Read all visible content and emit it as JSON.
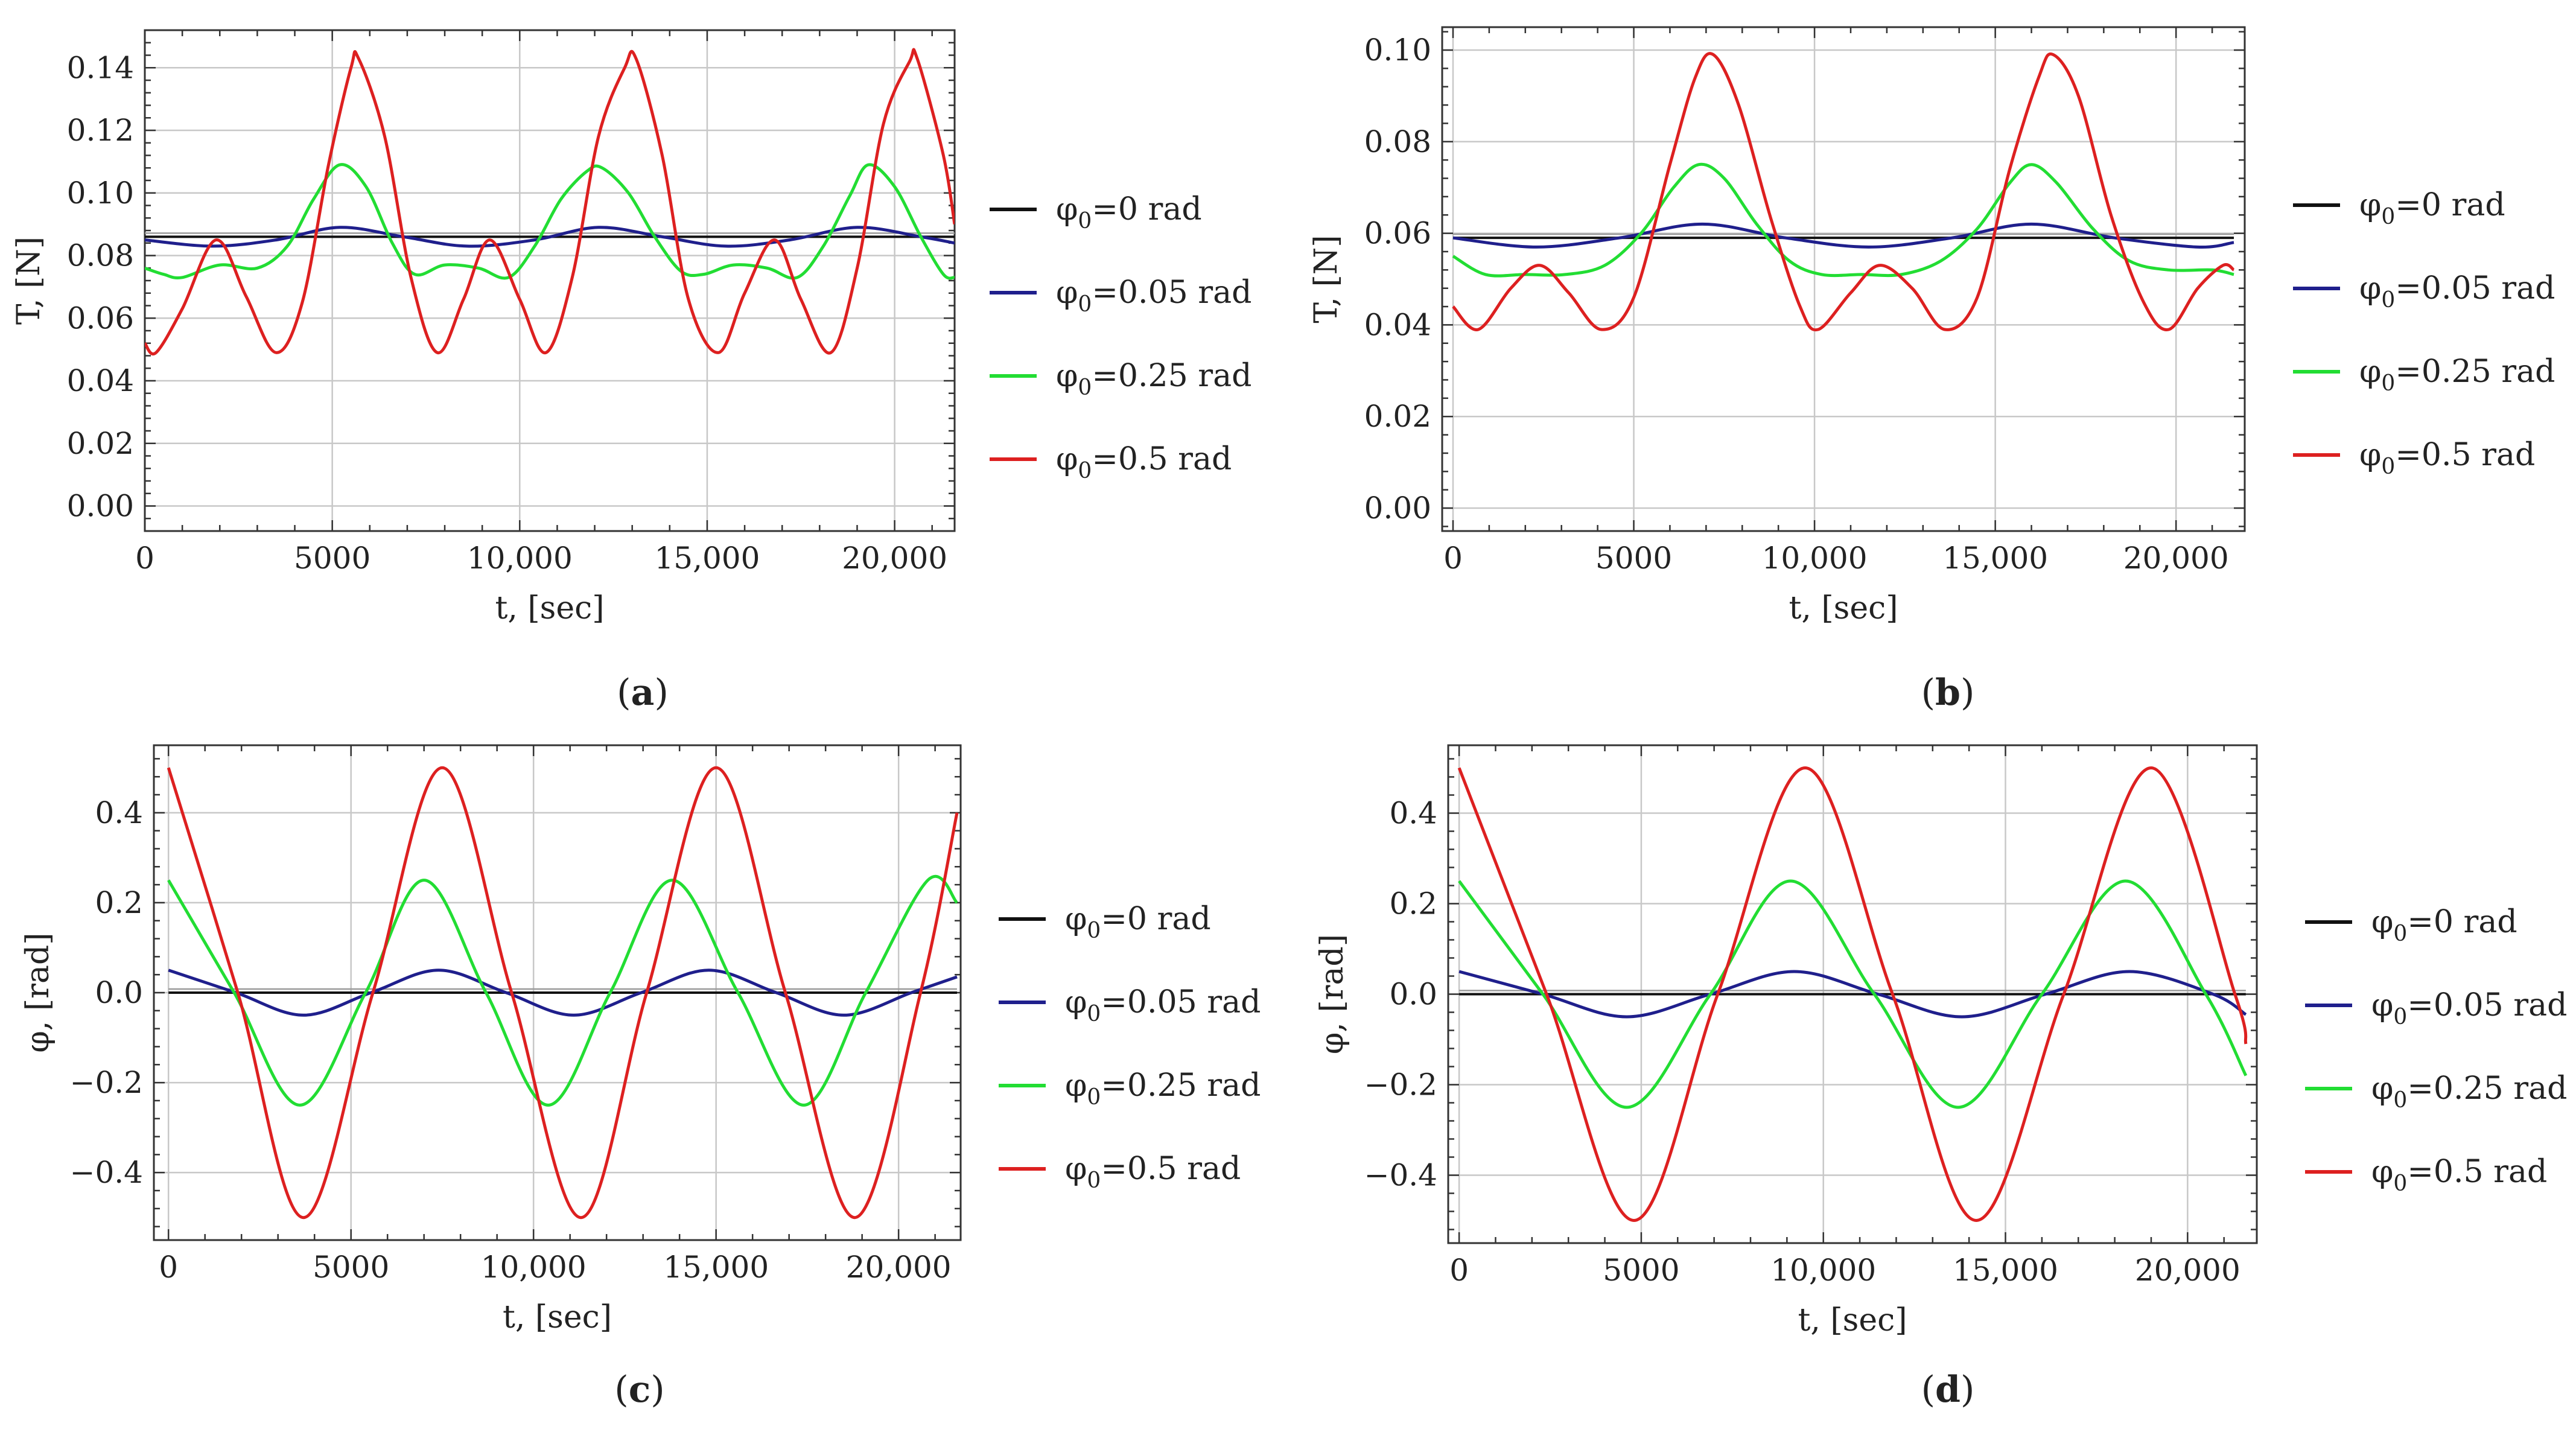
{
  "figure": {
    "colors": {
      "phi0_0": "#111111",
      "phi0_005": "#1f1f8c",
      "phi0_025": "#22dd33",
      "phi0_05": "#dd2020",
      "grid": "#c8c8c8",
      "frame": "#333333"
    }
  },
  "chart_data": [
    {
      "panel": "a",
      "type": "line",
      "panel_label": "(a)",
      "xlabel": "t, [sec]",
      "ylabel": "T, [N]",
      "xlim": [
        0,
        21600
      ],
      "ylim": [
        -0.008,
        0.152
      ],
      "xticks": [
        0,
        5000,
        10000,
        15000,
        20000
      ],
      "xtick_labels": [
        "0",
        "5000",
        "10,000",
        "15,000",
        "20,000"
      ],
      "yticks": [
        0,
        0.02,
        0.04,
        0.06,
        0.08,
        0.1,
        0.12,
        0.14
      ],
      "ytick_labels": [
        "0.00",
        "0.02",
        "0.04",
        "0.06",
        "0.08",
        "0.10",
        "0.12",
        "0.14"
      ],
      "grid": true,
      "legend_placement": "right",
      "series": [
        {
          "name": "φ0=0 rad",
          "phi0": "0",
          "color": "#111111",
          "x": [
            0,
            21600
          ],
          "y": [
            0.086,
            0.086
          ]
        },
        {
          "name": "φ0=0.05 rad",
          "phi0": "0.05",
          "color": "#1f1f8c",
          "x": [
            0,
            1800,
            3500,
            5200,
            6900,
            8600,
            10400,
            12100,
            13800,
            15500,
            17200,
            19000,
            20700,
            21600
          ],
          "y": [
            0.085,
            0.083,
            0.085,
            0.089,
            0.086,
            0.083,
            0.085,
            0.089,
            0.086,
            0.083,
            0.085,
            0.089,
            0.086,
            0.084
          ]
        },
        {
          "name": "φ0=0.25 rad",
          "phi0": "0.25",
          "color": "#22dd33",
          "x": [
            0,
            500,
            1000,
            2000,
            3000,
            3800,
            4500,
            5200,
            5900,
            6600,
            7200,
            8000,
            8900,
            9700,
            10400,
            11100,
            11800,
            12200,
            12900,
            13600,
            14300,
            14900,
            15700,
            16600,
            17400,
            18100,
            18800,
            19300,
            20000,
            20700,
            21300,
            21600
          ],
          "y": [
            0.076,
            0.074,
            0.073,
            0.077,
            0.076,
            0.083,
            0.098,
            0.109,
            0.102,
            0.084,
            0.074,
            0.077,
            0.076,
            0.073,
            0.083,
            0.098,
            0.107,
            0.108,
            0.1,
            0.086,
            0.075,
            0.074,
            0.077,
            0.076,
            0.073,
            0.083,
            0.099,
            0.109,
            0.102,
            0.086,
            0.074,
            0.073
          ]
        },
        {
          "name": "φ0=0.5 rad",
          "phi0": "0.5",
          "color": "#dd2020",
          "x": [
            0,
            300,
            1000,
            1900,
            2700,
            3500,
            4200,
            4900,
            5500,
            5700,
            6400,
            7100,
            7800,
            8500,
            9200,
            10000,
            10700,
            11400,
            12100,
            12800,
            13100,
            13800,
            14500,
            15300,
            16000,
            16800,
            17500,
            18300,
            19000,
            19700,
            20400,
            20600,
            21300,
            21600
          ],
          "y": [
            0.052,
            0.049,
            0.063,
            0.085,
            0.067,
            0.049,
            0.065,
            0.109,
            0.14,
            0.143,
            0.118,
            0.073,
            0.049,
            0.066,
            0.085,
            0.066,
            0.049,
            0.073,
            0.118,
            0.14,
            0.143,
            0.112,
            0.066,
            0.049,
            0.068,
            0.085,
            0.066,
            0.049,
            0.076,
            0.122,
            0.142,
            0.143,
            0.112,
            0.09
          ]
        }
      ]
    },
    {
      "panel": "b",
      "type": "line",
      "panel_label": "(b)",
      "xlabel": "t, [sec]",
      "ylabel": "T, [N]",
      "xlim": [
        -300,
        21900
      ],
      "ylim": [
        -0.005,
        0.105
      ],
      "xticks": [
        0,
        5000,
        10000,
        15000,
        20000
      ],
      "xtick_labels": [
        "0",
        "5000",
        "10,000",
        "15,000",
        "20,000"
      ],
      "yticks": [
        0,
        0.02,
        0.04,
        0.06,
        0.08,
        0.1
      ],
      "ytick_labels": [
        "0.00",
        "0.02",
        "0.04",
        "0.06",
        "0.08",
        "0.10"
      ],
      "grid": true,
      "legend_placement": "right",
      "series": [
        {
          "name": "φ0=0 rad",
          "phi0": "0",
          "color": "#111111",
          "x": [
            0,
            21600
          ],
          "y": [
            0.059,
            0.059
          ]
        },
        {
          "name": "φ0=0.05 rad",
          "phi0": "0.05",
          "color": "#1f1f8c",
          "x": [
            0,
            2300,
            4600,
            6900,
            9200,
            11500,
            13800,
            16000,
            18300,
            20600,
            21600
          ],
          "y": [
            0.059,
            0.057,
            0.059,
            0.062,
            0.059,
            0.057,
            0.059,
            0.062,
            0.059,
            0.057,
            0.058
          ]
        },
        {
          "name": "φ0=0.25 rad",
          "phi0": "0.25",
          "color": "#22dd33",
          "x": [
            0,
            900,
            2000,
            3100,
            4200,
            5200,
            6100,
            6800,
            7500,
            8400,
            9300,
            10200,
            11300,
            12400,
            13500,
            14500,
            15400,
            16000,
            16700,
            17700,
            18700,
            19800,
            21000,
            21600
          ],
          "y": [
            0.055,
            0.051,
            0.051,
            0.051,
            0.053,
            0.06,
            0.07,
            0.075,
            0.072,
            0.062,
            0.054,
            0.051,
            0.051,
            0.051,
            0.054,
            0.061,
            0.071,
            0.075,
            0.071,
            0.061,
            0.054,
            0.052,
            0.052,
            0.051
          ]
        },
        {
          "name": "φ0=0.5 rad",
          "phi0": "0.5",
          "color": "#dd2020",
          "x": [
            0,
            700,
            1600,
            2400,
            3200,
            4100,
            5000,
            6000,
            6700,
            7200,
            7900,
            8800,
            9600,
            10100,
            11000,
            11800,
            12700,
            13600,
            14500,
            15400,
            16200,
            16600,
            17300,
            18200,
            19100,
            19800,
            20600,
            21300,
            21600
          ],
          "y": [
            0.044,
            0.039,
            0.048,
            0.053,
            0.047,
            0.039,
            0.046,
            0.075,
            0.094,
            0.099,
            0.088,
            0.063,
            0.044,
            0.039,
            0.047,
            0.053,
            0.048,
            0.039,
            0.046,
            0.074,
            0.094,
            0.099,
            0.09,
            0.064,
            0.045,
            0.039,
            0.048,
            0.053,
            0.052
          ]
        }
      ]
    },
    {
      "panel": "c",
      "type": "line",
      "panel_label": "(c)",
      "xlabel": "t, [sec]",
      "ylabel": "φ, [rad]",
      "xlim": [
        -400,
        21700
      ],
      "ylim": [
        -0.55,
        0.55
      ],
      "xticks": [
        0,
        5000,
        10000,
        15000,
        20000
      ],
      "xtick_labels": [
        "0",
        "5000",
        "10,000",
        "15,000",
        "20,000"
      ],
      "yticks": [
        -0.4,
        -0.2,
        0,
        0.2,
        0.4
      ],
      "ytick_labels": [
        "−0.4",
        "−0.2",
        "0.0",
        "0.2",
        "0.4"
      ],
      "grid": true,
      "legend_placement": "right",
      "series": [
        {
          "name": "φ0=0 rad",
          "phi0": "0",
          "color": "#111111",
          "x": [
            0,
            21600
          ],
          "y": [
            0,
            0
          ]
        },
        {
          "name": "φ0=0.05 rad",
          "phi0": "0.05",
          "color": "#1f1f8c",
          "x": [
            0,
            1850,
            3700,
            5550,
            7400,
            9250,
            11100,
            12950,
            14800,
            16650,
            18500,
            20350,
            21600
          ],
          "y": [
            0.05,
            0.0,
            -0.05,
            0.0,
            0.05,
            0.0,
            -0.05,
            0.0,
            0.05,
            0.0,
            -0.05,
            0.0,
            0.035
          ]
        },
        {
          "name": "φ0=0.25 rad",
          "phi0": "0.25",
          "color": "#22dd33",
          "x": [
            0,
            1800,
            3600,
            5400,
            7000,
            8700,
            10400,
            12100,
            13800,
            15600,
            17400,
            19100,
            20800,
            21600
          ],
          "y": [
            0.25,
            0.0,
            -0.25,
            0.0,
            0.25,
            0.0,
            -0.25,
            0.0,
            0.25,
            0.0,
            -0.25,
            0.0,
            0.25,
            0.2
          ]
        },
        {
          "name": "φ0=0.5 rad",
          "phi0": "0.5",
          "color": "#dd2020",
          "x": [
            0,
            1900,
            3700,
            5600,
            7500,
            9400,
            11300,
            13100,
            15000,
            16900,
            18800,
            20600,
            21600
          ],
          "y": [
            0.5,
            0.0,
            -0.5,
            0.0,
            0.5,
            0.0,
            -0.5,
            0.0,
            0.5,
            0.0,
            -0.5,
            0.0,
            0.4
          ]
        }
      ]
    },
    {
      "panel": "d",
      "type": "line",
      "panel_label": "(d)",
      "xlabel": "t, [sec]",
      "ylabel": "φ, [rad]",
      "xlim": [
        -300,
        21900
      ],
      "ylim": [
        -0.55,
        0.55
      ],
      "xticks": [
        0,
        5000,
        10000,
        15000,
        20000
      ],
      "xtick_labels": [
        "0",
        "5000",
        "10,000",
        "15,000",
        "20,000"
      ],
      "yticks": [
        -0.4,
        -0.2,
        0,
        0.2,
        0.4
      ],
      "ytick_labels": [
        "−0.4",
        "−0.2",
        "0.0",
        "0.2",
        "0.4"
      ],
      "grid": true,
      "legend_placement": "right",
      "series": [
        {
          "name": "φ0=0 rad",
          "phi0": "0",
          "color": "#111111",
          "x": [
            0,
            21600
          ],
          "y": [
            0,
            0
          ]
        },
        {
          "name": "φ0=0.05 rad",
          "phi0": "0.05",
          "color": "#1f1f8c",
          "x": [
            0,
            2300,
            4600,
            6900,
            9200,
            11500,
            13800,
            16100,
            18400,
            20700,
            21600
          ],
          "y": [
            0.05,
            0.0,
            -0.05,
            0.0,
            0.05,
            0.0,
            -0.05,
            0.0,
            0.05,
            0.0,
            -0.045
          ]
        },
        {
          "name": "φ0=0.25 rad",
          "phi0": "0.25",
          "color": "#22dd33",
          "x": [
            0,
            2300,
            4600,
            6900,
            9100,
            11400,
            13700,
            16000,
            18300,
            20500,
            21600
          ],
          "y": [
            0.25,
            0.0,
            -0.25,
            0.0,
            0.25,
            0.0,
            -0.25,
            0.0,
            0.25,
            0.0,
            -0.18
          ]
        },
        {
          "name": "φ0=0.5 rad",
          "phi0": "0.5",
          "color": "#dd2020",
          "x": [
            0,
            2400,
            4800,
            7100,
            9500,
            11900,
            14200,
            16600,
            19000,
            21300,
            21600
          ],
          "y": [
            0.5,
            0.0,
            -0.5,
            0.0,
            0.5,
            0.0,
            -0.5,
            0.0,
            0.5,
            0.0,
            -0.11
          ]
        }
      ]
    }
  ]
}
